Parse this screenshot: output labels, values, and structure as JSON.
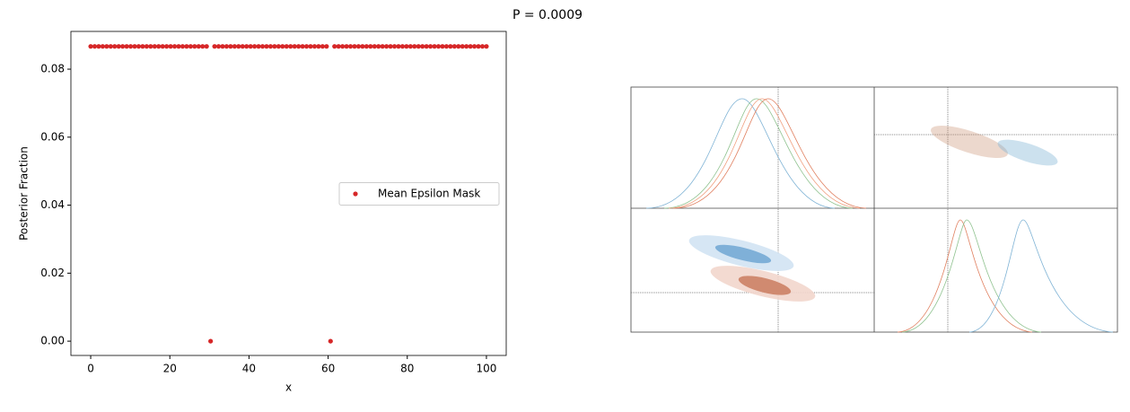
{
  "title": "P = 0.0009",
  "chart_data": {
    "type": "scatter",
    "x": [
      0,
      1.01,
      2.02,
      3.03,
      4.04,
      5.05,
      6.06,
      7.07,
      8.08,
      9.09,
      10.1,
      11.11,
      12.12,
      13.13,
      14.14,
      15.15,
      16.16,
      17.17,
      18.18,
      19.19,
      20.2,
      21.21,
      22.22,
      23.23,
      24.24,
      25.25,
      26.26,
      27.27,
      28.28,
      29.29,
      30.3,
      31.31,
      32.32,
      33.33,
      34.34,
      35.35,
      36.36,
      37.37,
      38.38,
      39.39,
      40.4,
      41.41,
      42.42,
      43.43,
      44.44,
      45.45,
      46.46,
      47.47,
      48.48,
      49.49,
      50.51,
      51.52,
      52.53,
      53.54,
      54.55,
      55.56,
      56.57,
      57.58,
      58.59,
      59.6,
      60.61,
      61.62,
      62.63,
      63.64,
      64.65,
      65.66,
      66.67,
      67.68,
      68.69,
      69.7,
      70.71,
      71.72,
      72.73,
      73.74,
      74.75,
      75.76,
      76.77,
      77.78,
      78.79,
      79.8,
      80.81,
      81.82,
      82.83,
      83.84,
      84.85,
      85.86,
      86.87,
      87.88,
      88.89,
      89.9,
      90.91,
      91.92,
      92.93,
      93.94,
      94.95,
      95.96,
      96.97,
      97.98,
      98.99,
      100
    ],
    "series": [
      {
        "name": "Mean Epsilon Mask",
        "color": "#d62728",
        "values": [
          0.0867,
          0.0867,
          0.0867,
          0.0867,
          0.0867,
          0.0867,
          0.0867,
          0.0867,
          0.0867,
          0.0867,
          0.0867,
          0.0867,
          0.0867,
          0.0867,
          0.0867,
          0.0867,
          0.0867,
          0.0867,
          0.0867,
          0.0867,
          0.0867,
          0.0867,
          0.0867,
          0.0867,
          0.0867,
          0.0867,
          0.0867,
          0.0867,
          0.0867,
          0.0867,
          0,
          0.0867,
          0.0867,
          0.0867,
          0.0867,
          0.0867,
          0.0867,
          0.0867,
          0.0867,
          0.0867,
          0.0867,
          0.0867,
          0.0867,
          0.0867,
          0.0867,
          0.0867,
          0.0867,
          0.0867,
          0.0867,
          0.0867,
          0.0867,
          0.0867,
          0.0867,
          0.0867,
          0.0867,
          0.0867,
          0.0867,
          0.0867,
          0.0867,
          0.0867,
          0,
          0.0867,
          0.0867,
          0.0867,
          0.0867,
          0.0867,
          0.0867,
          0.0867,
          0.0867,
          0.0867,
          0.0867,
          0.0867,
          0.0867,
          0.0867,
          0.0867,
          0.0867,
          0.0867,
          0.0867,
          0.0867,
          0.0867,
          0.0867,
          0.0867,
          0.0867,
          0.0867,
          0.0867,
          0.0867,
          0.0867,
          0.0867,
          0.0867,
          0.0867,
          0.0867,
          0.0867,
          0.0867,
          0.0867,
          0.0867,
          0.0867,
          0.0867,
          0.0867,
          0.0867,
          0.0867
        ]
      }
    ],
    "xlabel": "x",
    "ylabel": "Posterior Fraction",
    "xlim": [
      -5,
      105
    ],
    "xticks": [
      0,
      20,
      40,
      60,
      80,
      100
    ],
    "ylim": [
      -0.0042,
      0.0911
    ],
    "yticks": [
      {
        "value": 0,
        "label": "0.00"
      },
      {
        "value": 0.02,
        "label": "0.02"
      },
      {
        "value": 0.04,
        "label": "0.04"
      },
      {
        "value": 0.06,
        "label": "0.06"
      },
      {
        "value": 0.08,
        "label": "0.08"
      }
    ],
    "legend": "center right",
    "grid": false
  }
}
